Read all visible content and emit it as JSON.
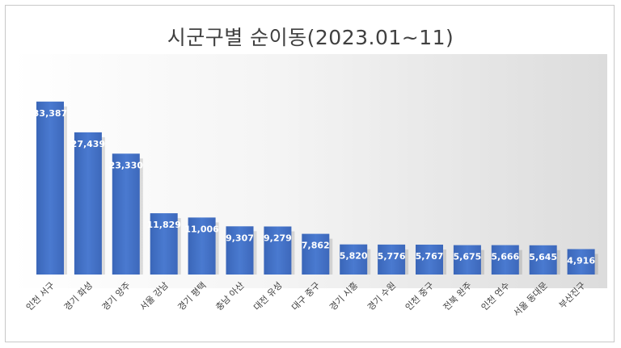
{
  "chart_data": {
    "type": "bar",
    "title": "시군구별 순이동(2023.01~11)",
    "categories": [
      "인천 서구",
      "경기 화성",
      "경기 양주",
      "서울 강남",
      "경기 평택",
      "충남 아산",
      "대전 유성",
      "대구 중구",
      "경기 시흥",
      "경기 수원",
      "인천 중구",
      "전북 완주",
      "인천 연수",
      "서울 동대문",
      "부산진구"
    ],
    "values": [
      33387,
      27439,
      23330,
      11829,
      11006,
      9307,
      9279,
      7862,
      5820,
      5776,
      5767,
      5675,
      5666,
      5645,
      4916
    ],
    "value_labels": [
      "33,387",
      "27,439",
      "23,330",
      "11,829",
      "11,006",
      "9,307",
      "9,279",
      "7,862",
      "5,820",
      "5,776",
      "5,767",
      "5,675",
      "5,666",
      "5,645",
      "4,916"
    ],
    "ylim": [
      0,
      36000
    ],
    "grid": false,
    "bar_color": "#4472C4",
    "label_color": "#ffffff"
  }
}
